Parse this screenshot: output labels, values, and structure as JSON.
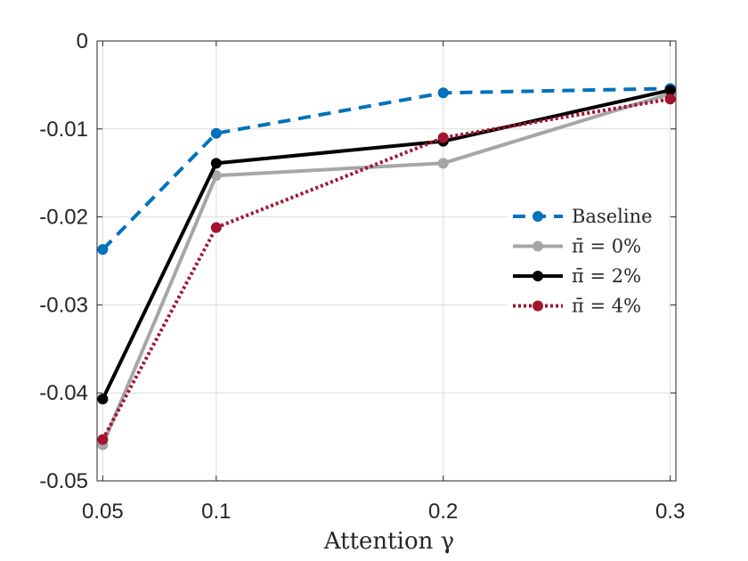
{
  "chart_data": {
    "type": "line",
    "title": "",
    "xlabel": "Attention γ",
    "ylabel": "",
    "xlim": [
      0.0475,
      0.3025
    ],
    "ylim": [
      -0.05,
      0
    ],
    "x": [
      0.05,
      0.1,
      0.2,
      0.3
    ],
    "x_tick_labels": [
      "0.05",
      "0.1",
      "0.2",
      "0.3"
    ],
    "y_ticks": [
      0,
      -0.01,
      -0.02,
      -0.03,
      -0.04,
      -0.05
    ],
    "y_tick_labels": [
      "0",
      "-0.01",
      "-0.02",
      "-0.03",
      "-0.04",
      "-0.05"
    ],
    "grid": true,
    "legend_position": "right",
    "series": [
      {
        "name": "Baseline",
        "values": [
          -0.0237,
          -0.0105,
          -0.0059,
          -0.0054
        ],
        "color": "#0072BD",
        "dash": "dashed"
      },
      {
        "name": "π̄ = 0%",
        "values": [
          -0.0459,
          -0.0153,
          -0.0139,
          -0.006
        ],
        "color": "#A6A6A6",
        "dash": "solid"
      },
      {
        "name": "π̄ = 2%",
        "values": [
          -0.0407,
          -0.0139,
          -0.0114,
          -0.0056
        ],
        "color": "#000000",
        "dash": "solid"
      },
      {
        "name": "π̄ = 4%",
        "values": [
          -0.0453,
          -0.0212,
          -0.011,
          -0.0066
        ],
        "color": "#A2142F",
        "dash": "dotted"
      }
    ]
  }
}
